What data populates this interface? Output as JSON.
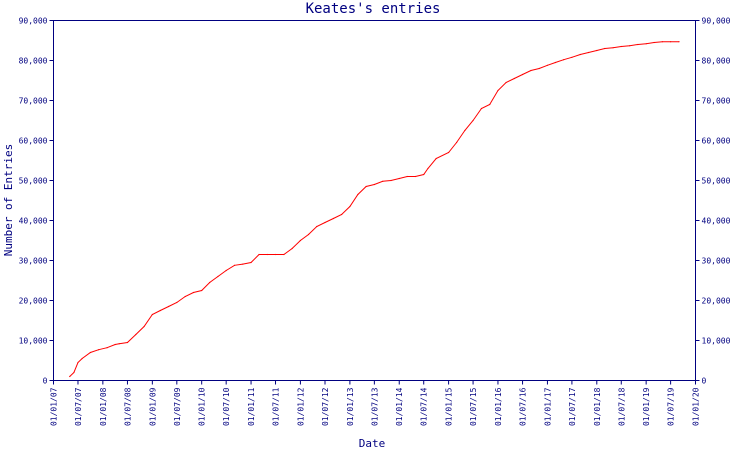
{
  "chart_data": {
    "type": "line",
    "title": "Keates's entries",
    "xlabel": "Date",
    "ylabel": "Number of Entries",
    "ylim": [
      0,
      90000
    ],
    "y_ticks": [
      "0",
      "10,000",
      "20,000",
      "30,000",
      "40,000",
      "50,000",
      "60,000",
      "70,000",
      "80,000",
      "90,000"
    ],
    "y_tick_values": [
      0,
      10000,
      20000,
      30000,
      40000,
      50000,
      60000,
      70000,
      80000,
      90000
    ],
    "x_ticks": [
      "01/01/07",
      "01/07/07",
      "01/01/08",
      "01/07/08",
      "01/01/09",
      "01/07/09",
      "01/01/10",
      "01/07/10",
      "01/01/11",
      "01/07/11",
      "01/01/12",
      "01/07/12",
      "01/01/13",
      "01/07/13",
      "01/01/14",
      "01/07/14",
      "01/01/15",
      "01/07/15",
      "01/01/16",
      "01/07/16",
      "01/01/17",
      "01/07/17",
      "01/01/18",
      "01/07/18",
      "01/01/19",
      "01/07/19",
      "01/01/20"
    ],
    "xlim": [
      "2007-01-01",
      "2020-01-01"
    ],
    "grid": false,
    "legend": "none",
    "series": [
      {
        "color": "#ff0000",
        "x": [
          "2007-05-01",
          "2007-06-01",
          "2007-07-01",
          "2007-08-01",
          "2007-10-01",
          "2007-12-01",
          "2008-02-01",
          "2008-04-01",
          "2008-05-01",
          "2008-07-01",
          "2008-09-01",
          "2008-11-01",
          "2009-01-01",
          "2009-03-01",
          "2009-05-01",
          "2009-07-01",
          "2009-09-01",
          "2009-11-01",
          "2010-01-01",
          "2010-03-01",
          "2010-05-01",
          "2010-07-01",
          "2010-09-01",
          "2010-11-01",
          "2011-01-01",
          "2011-03-01",
          "2011-05-01",
          "2011-07-01",
          "2011-09-01",
          "2011-11-01",
          "2012-01-01",
          "2012-03-01",
          "2012-05-01",
          "2012-07-01",
          "2012-09-01",
          "2012-11-01",
          "2013-01-01",
          "2013-03-01",
          "2013-05-01",
          "2013-07-01",
          "2013-09-01",
          "2013-11-01",
          "2014-01-01",
          "2014-03-01",
          "2014-05-01",
          "2014-07-01",
          "2014-08-01",
          "2014-10-01",
          "2015-01-01",
          "2015-03-01",
          "2015-05-01",
          "2015-07-01",
          "2015-09-01",
          "2015-11-01",
          "2016-01-01",
          "2016-03-01",
          "2016-05-01",
          "2016-07-01",
          "2016-09-01",
          "2016-11-01",
          "2017-01-01",
          "2017-03-01",
          "2017-05-01",
          "2017-07-01",
          "2017-09-01",
          "2017-11-01",
          "2018-01-01",
          "2018-03-01",
          "2018-05-01",
          "2018-07-01",
          "2018-09-01",
          "2018-11-01",
          "2019-01-01",
          "2019-03-01",
          "2019-05-01",
          "2019-07-01",
          "2019-09-01"
        ],
        "values": [
          1000,
          2000,
          4500,
          5500,
          7000,
          7700,
          8200,
          9000,
          9200,
          9500,
          11500,
          13500,
          16500,
          17500,
          18500,
          19500,
          21000,
          22000,
          22500,
          24500,
          26000,
          27500,
          28800,
          29100,
          29500,
          31500,
          31500,
          31500,
          31500,
          33000,
          35000,
          36500,
          38500,
          39500,
          40500,
          41500,
          43500,
          46500,
          48500,
          49000,
          49800,
          50000,
          50500,
          51000,
          51000,
          51500,
          53000,
          55500,
          57000,
          59500,
          62500,
          65000,
          68000,
          69000,
          72500,
          74500,
          75500,
          76500,
          77500,
          78000,
          78800,
          79500,
          80200,
          80800,
          81500,
          82000,
          82500,
          83000,
          83200,
          83500,
          83700,
          84000,
          84200,
          84500,
          84700,
          84700,
          84700
        ]
      }
    ]
  }
}
